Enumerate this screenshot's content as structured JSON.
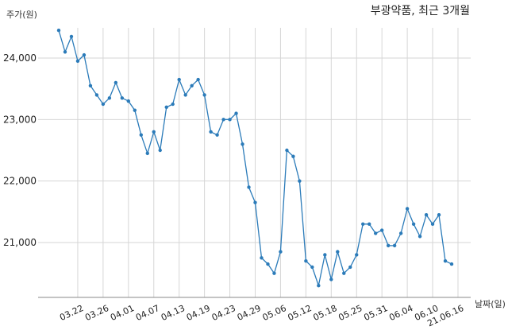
{
  "chart_data": {
    "type": "line",
    "title": "부광약품, 최근 3개월",
    "ylabel": "주가(원)",
    "xlabel": "날짜(일)",
    "ylim": [
      20000,
      24700
    ],
    "yticks": [
      21000,
      22000,
      23000,
      24000
    ],
    "ytick_labels": [
      "21,000",
      "22,000",
      "23,000",
      "24,000"
    ],
    "x_tick_labels": [
      "03.22",
      "03.26",
      "04.01",
      "04.07",
      "04.13",
      "04.19",
      "04.23",
      "04.29",
      "05.06",
      "05.12",
      "05.18",
      "05.25",
      "05.31",
      "06.04",
      "06.10",
      "21.06.16"
    ],
    "x_tick_index": [
      3,
      7,
      11,
      15,
      19,
      23,
      27,
      31,
      35,
      39,
      43,
      47,
      51,
      55,
      59,
      63
    ],
    "grid": true,
    "line_color": "#2b7bb9",
    "series": [
      {
        "values": [
          24450,
          24100,
          24350,
          23950,
          24050,
          23550,
          23400,
          23250,
          23350,
          23600,
          23350,
          23300,
          23150,
          22750,
          22450,
          22800,
          22500,
          23200,
          23250,
          23650,
          23400,
          23550,
          23650,
          23400,
          22800,
          22750,
          23000,
          23000,
          23100,
          22600,
          21900,
          21650,
          20750,
          20650,
          20500,
          20850,
          22500,
          22400,
          22000,
          20700,
          20600,
          20300,
          20800,
          20400,
          20850,
          20500,
          20600,
          20800,
          21300,
          21300,
          21150,
          21200,
          20950,
          20950,
          21150,
          21550,
          21300,
          21100,
          21450,
          21300,
          21450,
          20700,
          20650
        ]
      }
    ]
  }
}
